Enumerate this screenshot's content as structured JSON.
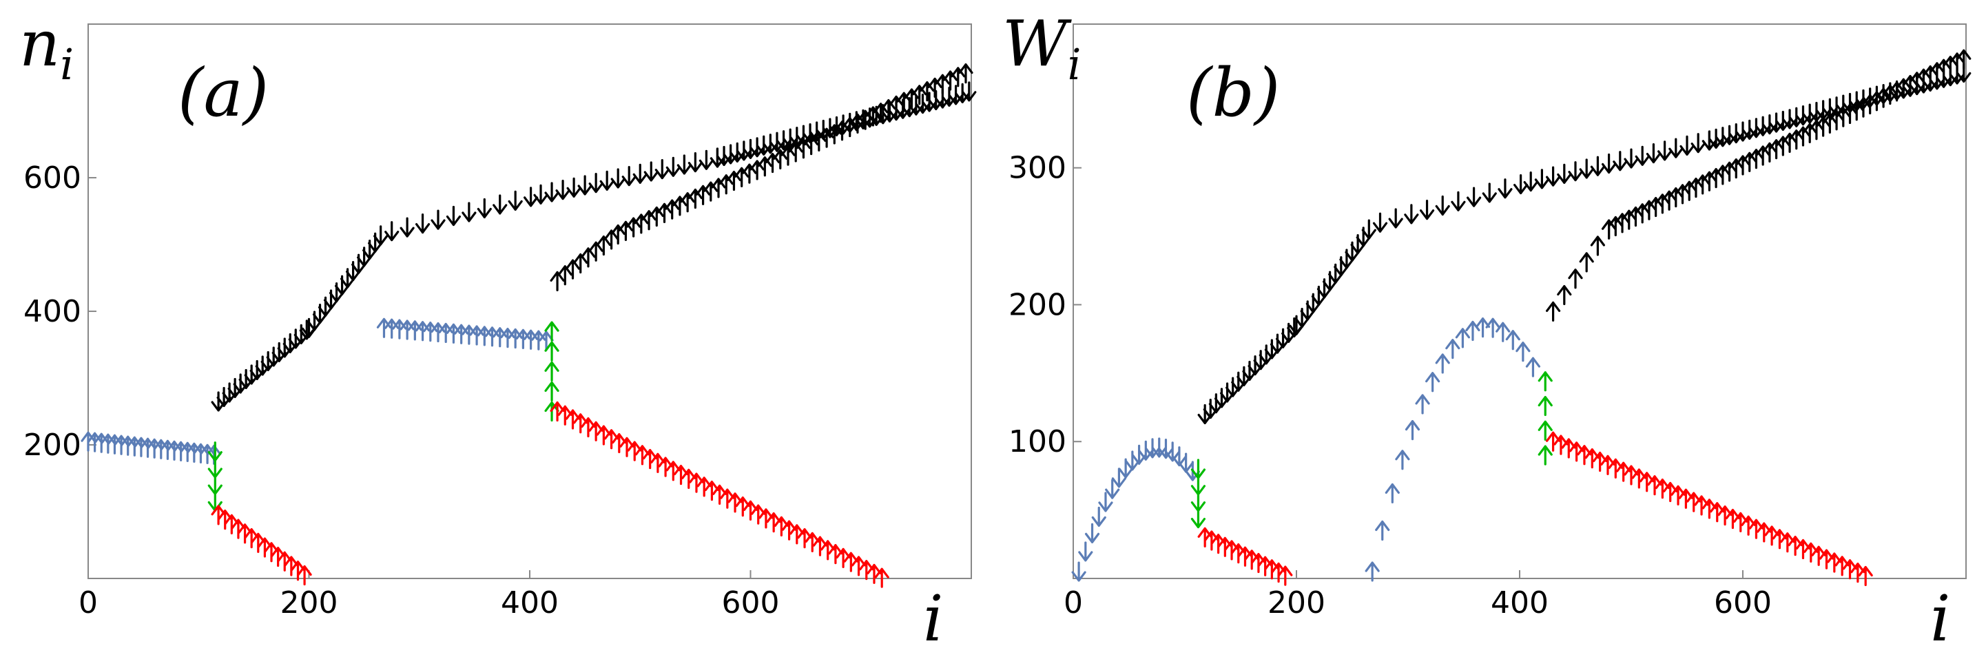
{
  "colors": {
    "black": "#000000",
    "blue": "#5b7db6",
    "red": "#ff0000",
    "green": "#00bb00"
  },
  "chart_data": [
    {
      "type": "scatter",
      "panel_label": "(a)",
      "ylabel": "n",
      "ylabel_sub": "i",
      "xlabel": "i",
      "xlim": [
        0,
        800
      ],
      "ylim": [
        0,
        830
      ],
      "x_ticks": [
        0,
        200,
        400,
        600
      ],
      "y_ticks": [
        200,
        400,
        600
      ],
      "marker": "arrow",
      "series": [
        {
          "color": "blue",
          "dir": "up",
          "from": [
            0,
            205
          ],
          "to": [
            115,
            185
          ],
          "step": 6
        },
        {
          "color": "green",
          "dir": "down",
          "from": [
            115,
            190
          ],
          "to": [
            115,
            115
          ],
          "step": 25
        },
        {
          "color": "red",
          "dir": "up",
          "from": [
            118,
            95
          ],
          "to": [
            200,
            0
          ],
          "step": 6
        },
        {
          "color": "black",
          "dir": "down",
          "from": [
            118,
            265
          ],
          "to": [
            200,
            375
          ],
          "step": 5
        },
        {
          "color": "black",
          "dir": "down",
          "from": [
            200,
            375
          ],
          "to": [
            268,
            520
          ],
          "step": 5
        },
        {
          "color": "black",
          "dir": "down",
          "from": [
            275,
            520
          ],
          "to": [
            410,
            575
          ],
          "step": 14
        },
        {
          "color": "black",
          "dir": "down",
          "from": [
            410,
            575
          ],
          "to": [
            570,
            630
          ],
          "step": 10
        },
        {
          "color": "black",
          "dir": "down",
          "from": [
            570,
            630
          ],
          "to": [
            800,
            730
          ],
          "step": 6
        },
        {
          "color": "blue",
          "dir": "up",
          "from": [
            268,
            375
          ],
          "to": [
            420,
            355
          ],
          "step": 7
        },
        {
          "color": "green",
          "dir": "up",
          "from": [
            420,
            250
          ],
          "to": [
            420,
            395
          ],
          "step": 30
        },
        {
          "color": "red",
          "dir": "up",
          "from": [
            425,
            250
          ],
          "to": [
            720,
            0
          ],
          "step": 7
        },
        {
          "color": "black",
          "dir": "up",
          "from": [
            425,
            445
          ],
          "to": [
            480,
            515
          ],
          "step": 7
        },
        {
          "color": "black",
          "dir": "up",
          "from": [
            480,
            515
          ],
          "to": [
            800,
            760
          ],
          "step": 7
        }
      ]
    },
    {
      "type": "scatter",
      "panel_label": "(b)",
      "ylabel": "W",
      "ylabel_sub": "i",
      "xlabel": "i",
      "xlim": [
        0,
        800
      ],
      "ylim": [
        0,
        405
      ],
      "x_ticks": [
        0,
        200,
        400,
        600
      ],
      "y_ticks": [
        100,
        200,
        300
      ],
      "marker": "arrow",
      "series": [
        {
          "color": "blue",
          "dir": "down",
          "shape": "arc",
          "from": [
            5,
            5
          ],
          "to": [
            110,
            75
          ],
          "peak": [
            82,
            95
          ],
          "step": 6
        },
        {
          "color": "green",
          "dir": "down",
          "from": [
            112,
            80
          ],
          "to": [
            112,
            35
          ],
          "step": 12
        },
        {
          "color": "red",
          "dir": "up",
          "from": [
            118,
            30
          ],
          "to": [
            195,
            0
          ],
          "step": 6
        },
        {
          "color": "black",
          "dir": "down",
          "from": [
            118,
            120
          ],
          "to": [
            200,
            185
          ],
          "step": 5
        },
        {
          "color": "black",
          "dir": "down",
          "from": [
            200,
            185
          ],
          "to": [
            265,
            255
          ],
          "step": 5
        },
        {
          "color": "black",
          "dir": "down",
          "from": [
            275,
            260
          ],
          "to": [
            410,
            290
          ],
          "step": 14
        },
        {
          "color": "black",
          "dir": "down",
          "from": [
            410,
            290
          ],
          "to": [
            570,
            320
          ],
          "step": 10
        },
        {
          "color": "black",
          "dir": "down",
          "from": [
            570,
            320
          ],
          "to": [
            800,
            370
          ],
          "step": 6
        },
        {
          "color": "blue",
          "dir": "up",
          "shape": "arc",
          "from": [
            268,
            5
          ],
          "to": [
            415,
            150
          ],
          "peak": [
            385,
            180
          ],
          "step": 9
        },
        {
          "color": "green",
          "dir": "up",
          "from": [
            423,
            90
          ],
          "to": [
            423,
            145
          ],
          "step": 18
        },
        {
          "color": "red",
          "dir": "up",
          "from": [
            430,
            100
          ],
          "to": [
            715,
            0
          ],
          "step": 7
        },
        {
          "color": "black",
          "dir": "up",
          "from": [
            430,
            195
          ],
          "to": [
            480,
            255
          ],
          "step": 10
        },
        {
          "color": "black",
          "dir": "up",
          "from": [
            480,
            255
          ],
          "to": [
            800,
            380
          ],
          "step": 6
        }
      ]
    }
  ]
}
